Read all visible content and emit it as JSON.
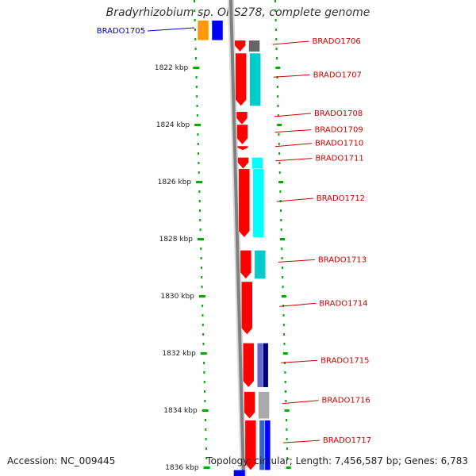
{
  "title": "Bradyrhizobium sp. ORS278, complete genome",
  "footer": {
    "accession": "Accession: NC_009445",
    "summary": "Topology: circular; Length: 7,456,587 bp; Genes: 6,783"
  },
  "colors": {
    "forward_cds": "#ff0000",
    "tick": "#00aa00",
    "gene_label": "#cc0000",
    "selected_label": "#0000cc",
    "backbone": "#808080"
  },
  "scale": {
    "unit": "kbp",
    "ticks": [
      {
        "value": 1822,
        "label": "1822 kbp"
      },
      {
        "value": 1824,
        "label": "1824 kbp"
      },
      {
        "value": 1826,
        "label": "1826 kbp"
      },
      {
        "value": 1828,
        "label": "1828 kbp"
      },
      {
        "value": 1830,
        "label": "1830 kbp"
      },
      {
        "value": 1832,
        "label": "1832 kbp"
      },
      {
        "value": 1834,
        "label": "1834 kbp"
      },
      {
        "value": 1836,
        "label": "1836 kbp"
      }
    ]
  },
  "genes": [
    {
      "name": "BRADO1705",
      "start": 1820.35,
      "end": 1821.05,
      "strand": "-",
      "cog_colors": [
        "#ff9900",
        "#0000ff"
      ],
      "selected": true
    },
    {
      "name": "BRADO1706",
      "start": 1821.05,
      "end": 1821.45,
      "strand": "+",
      "cog_colors": [
        "#666666"
      ]
    },
    {
      "name": "BRADO1707",
      "start": 1821.5,
      "end": 1823.35,
      "strand": "+",
      "cog_colors": [
        "#00cccc"
      ]
    },
    {
      "name": "BRADO1708",
      "start": 1823.55,
      "end": 1824.0,
      "strand": "+",
      "cog_colors": []
    },
    {
      "name": "BRADO1709",
      "start": 1824.0,
      "end": 1824.7,
      "strand": "+",
      "cog_colors": []
    },
    {
      "name": "BRADO1710",
      "start": 1824.75,
      "end": 1824.9,
      "strand": "+",
      "cog_colors": []
    },
    {
      "name": "BRADO1711",
      "start": 1825.15,
      "end": 1825.55,
      "strand": "+",
      "cog_colors": [
        "#00ffff"
      ]
    },
    {
      "name": "BRADO1712",
      "start": 1825.55,
      "end": 1827.95,
      "strand": "+",
      "cog_colors": [
        "#00ffff"
      ]
    },
    {
      "name": "BRADO1713",
      "start": 1828.4,
      "end": 1829.4,
      "strand": "+",
      "cog_colors": [
        "#00cccc"
      ]
    },
    {
      "name": "BRADO1714",
      "start": 1829.5,
      "end": 1831.35,
      "strand": "+",
      "cog_colors": []
    },
    {
      "name": "BRADO1715",
      "start": 1831.65,
      "end": 1833.2,
      "strand": "+",
      "cog_colors": [
        "#6666cc",
        "#000080"
      ]
    },
    {
      "name": "BRADO1716",
      "start": 1833.35,
      "end": 1834.3,
      "strand": "+",
      "cog_colors": [
        "#aaaaaa"
      ]
    },
    {
      "name": "BRADO1717",
      "start": 1834.35,
      "end": 1836.1,
      "strand": "+",
      "cog_colors": [
        "#3366cc",
        "#0000ff"
      ]
    }
  ],
  "offscreen_genes": [
    {
      "start": 1836.1,
      "end": 1836.4,
      "strand": "-",
      "cog_colors": [
        "#0000ff"
      ]
    }
  ]
}
